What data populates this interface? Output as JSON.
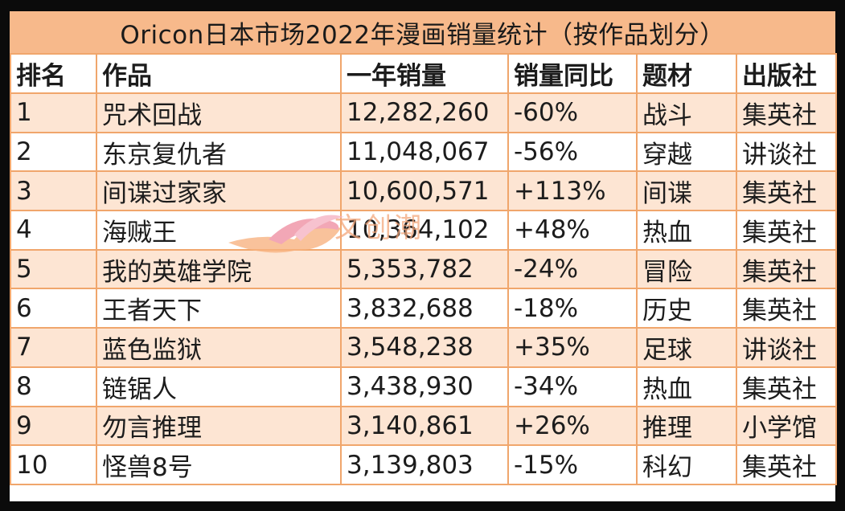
{
  "title": "Oricon日本市场2022年漫画销量统计（按作品划分）",
  "headers": [
    "排名",
    "作品",
    "一年销量",
    "销量同比",
    "题材",
    "出版社"
  ],
  "rows": [
    {
      "rank": "1",
      "title": "咒术回战",
      "sales": "12,282,260",
      "yoy": "-60%",
      "genre": "战斗",
      "publisher": "集英社"
    },
    {
      "rank": "2",
      "title": "东京复仇者",
      "sales": "11,048,067",
      "yoy": "-56%",
      "genre": "穿越",
      "publisher": "讲谈社"
    },
    {
      "rank": "3",
      "title": "间谍过家家",
      "sales": "10,600,571",
      "yoy": "+113%",
      "genre": "间谍",
      "publisher": "集英社"
    },
    {
      "rank": "4",
      "title": "海贼王",
      "sales": "10,364,102",
      "yoy": "+48%",
      "genre": "热血",
      "publisher": "集英社"
    },
    {
      "rank": "5",
      "title": "我的英雄学院",
      "sales": "5,353,782",
      "yoy": "-24%",
      "genre": "冒险",
      "publisher": "集英社"
    },
    {
      "rank": "6",
      "title": "王者天下",
      "sales": "3,832,688",
      "yoy": "-18%",
      "genre": "历史",
      "publisher": "集英社"
    },
    {
      "rank": "7",
      "title": "蓝色监狱",
      "sales": "3,548,238",
      "yoy": "+35%",
      "genre": "足球",
      "publisher": "讲谈社"
    },
    {
      "rank": "8",
      "title": "链锯人",
      "sales": "3,438,930",
      "yoy": "-34%",
      "genre": "热血",
      "publisher": "集英社"
    },
    {
      "rank": "9",
      "title": "勿言推理",
      "sales": "3,140,861",
      "yoy": "+26%",
      "genre": "推理",
      "publisher": "小学馆"
    },
    {
      "rank": "10",
      "title": "怪兽8号",
      "sales": "3,139,803",
      "yoy": "-15%",
      "genre": "科幻",
      "publisher": "集英社"
    }
  ],
  "watermark": {
    "text": "文创潮",
    "icon": "fish-logo-icon"
  },
  "colors": {
    "title_bg": "#f7b98b",
    "stripe": "#fde5d3",
    "border": "#f0a66c",
    "watermark": "#f3a77c"
  }
}
